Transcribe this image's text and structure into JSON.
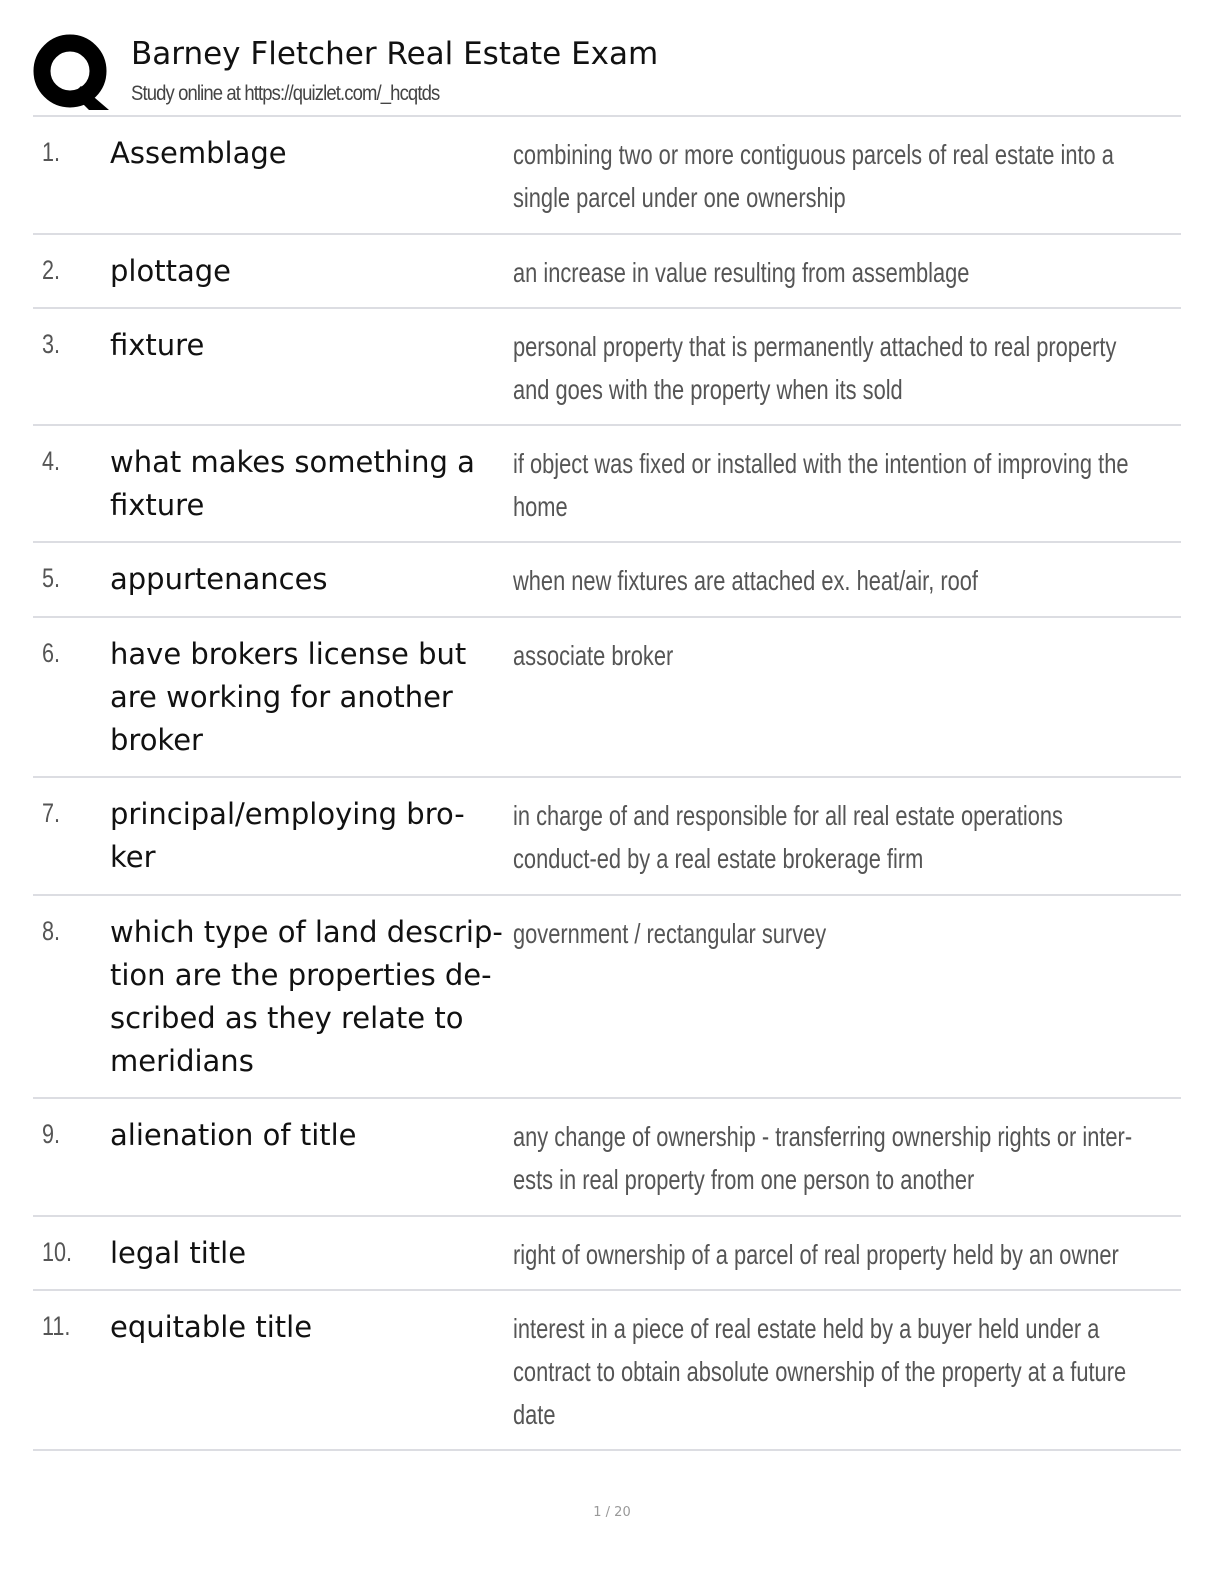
{
  "header": {
    "title": "Barney Fletcher Real Estate Exam",
    "subtitle": "Study online at https://quizlet.com/_hcqtds",
    "logo": "quizlet-q-logo"
  },
  "items": [
    {
      "num": "1.",
      "term": "Assemblage",
      "definition": "combining two or more contiguous parcels of real estate into a single parcel under one ownership"
    },
    {
      "num": "2.",
      "term": "plottage",
      "definition": "an increase in value resulting from assemblage"
    },
    {
      "num": "3.",
      "term": "fixture",
      "definition": "personal property that is permanently attached to real property and goes with the property when its sold"
    },
    {
      "num": "4.",
      "term": "what makes something a fixture",
      "definition": "if object was fixed or installed with the intention of improving the home"
    },
    {
      "num": "5.",
      "term": "appurtenances",
      "definition": "when new fixtures are attached ex. heat/air, roof"
    },
    {
      "num": "6.",
      "term": "have brokers license but are working for another broker",
      "definition": "associate broker"
    },
    {
      "num": "7.",
      "term": "principal/employing bro-ker",
      "definition": "in charge of and responsible for all real estate operations conduct-ed by a real estate brokerage firm"
    },
    {
      "num": "8.",
      "term": "which type of land descrip-tion are the properties de-scribed as they relate to meridians",
      "definition": "government / rectangular survey"
    },
    {
      "num": "9.",
      "term": "alienation of title",
      "definition": "any change of ownership - transferring ownership rights or inter-ests in real property from one person to another"
    },
    {
      "num": "10.",
      "term": "legal title",
      "definition": "right of ownership of a parcel of real property held by an owner"
    },
    {
      "num": "11.",
      "term": "equitable title",
      "definition": "interest in a piece of real estate held by a buyer held under a contract to obtain absolute ownership of the property at a future date"
    }
  ],
  "footer": {
    "page": "1 / 20"
  }
}
